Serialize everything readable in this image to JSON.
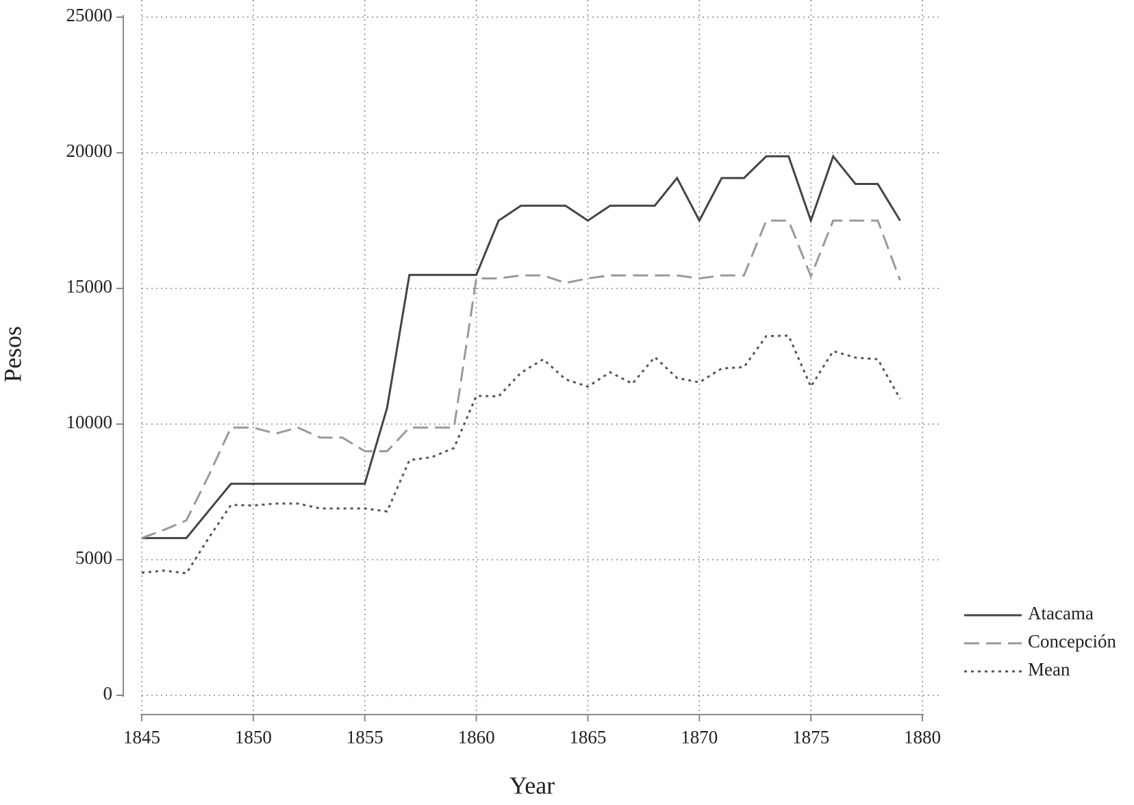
{
  "chart_data": {
    "type": "line",
    "x_label": "Year",
    "y_label": "Pesos",
    "x": [
      1845,
      1846,
      1847,
      1848,
      1849,
      1850,
      1851,
      1852,
      1853,
      1854,
      1855,
      1856,
      1857,
      1858,
      1859,
      1860,
      1861,
      1862,
      1863,
      1864,
      1865,
      1866,
      1867,
      1868,
      1869,
      1870,
      1871,
      1872,
      1873,
      1874,
      1875,
      1876,
      1877,
      1878,
      1879
    ],
    "series": [
      {
        "name": "Atacama",
        "color": "#444444",
        "dash": "solid",
        "values": [
          5800,
          5800,
          5800,
          6800,
          7800,
          7800,
          7800,
          7800,
          7800,
          7800,
          7800,
          10600,
          15500,
          15500,
          15500,
          15500,
          17500,
          18050,
          18050,
          18050,
          17500,
          18050,
          18050,
          18050,
          19070,
          17500,
          19070,
          19070,
          19870,
          19870,
          17500,
          19870,
          18850,
          18850,
          17500
        ]
      },
      {
        "name": "Concepción",
        "color": "#999999",
        "dash": "dashed",
        "values": [
          5800,
          6100,
          6450,
          8100,
          9870,
          9870,
          9650,
          9870,
          9500,
          9500,
          9000,
          9000,
          9870,
          9870,
          9870,
          15370,
          15370,
          15480,
          15480,
          15200,
          15370,
          15480,
          15480,
          15480,
          15480,
          15370,
          15480,
          15480,
          17500,
          17500,
          15450,
          17500,
          17500,
          17500,
          15300
        ]
      },
      {
        "name": "Mean",
        "color": "#555555",
        "dash": "dotted",
        "values": [
          4520,
          4600,
          4500,
          5800,
          7020,
          7000,
          7070,
          7070,
          6890,
          6890,
          6890,
          6780,
          8670,
          8780,
          9120,
          11040,
          11020,
          11890,
          12390,
          11650,
          11380,
          11910,
          11490,
          12470,
          11700,
          11540,
          12050,
          12100,
          13240,
          13260,
          11380,
          12690,
          12450,
          12390,
          10930
        ]
      }
    ],
    "xlim": [
      1845,
      1880
    ],
    "xticks": [
      1845,
      1850,
      1855,
      1860,
      1865,
      1870,
      1875,
      1880
    ],
    "ylim": [
      0,
      25000
    ],
    "yticks": [
      0,
      5000,
      10000,
      15000,
      20000,
      25000
    ],
    "grid": true,
    "legend": "right"
  }
}
